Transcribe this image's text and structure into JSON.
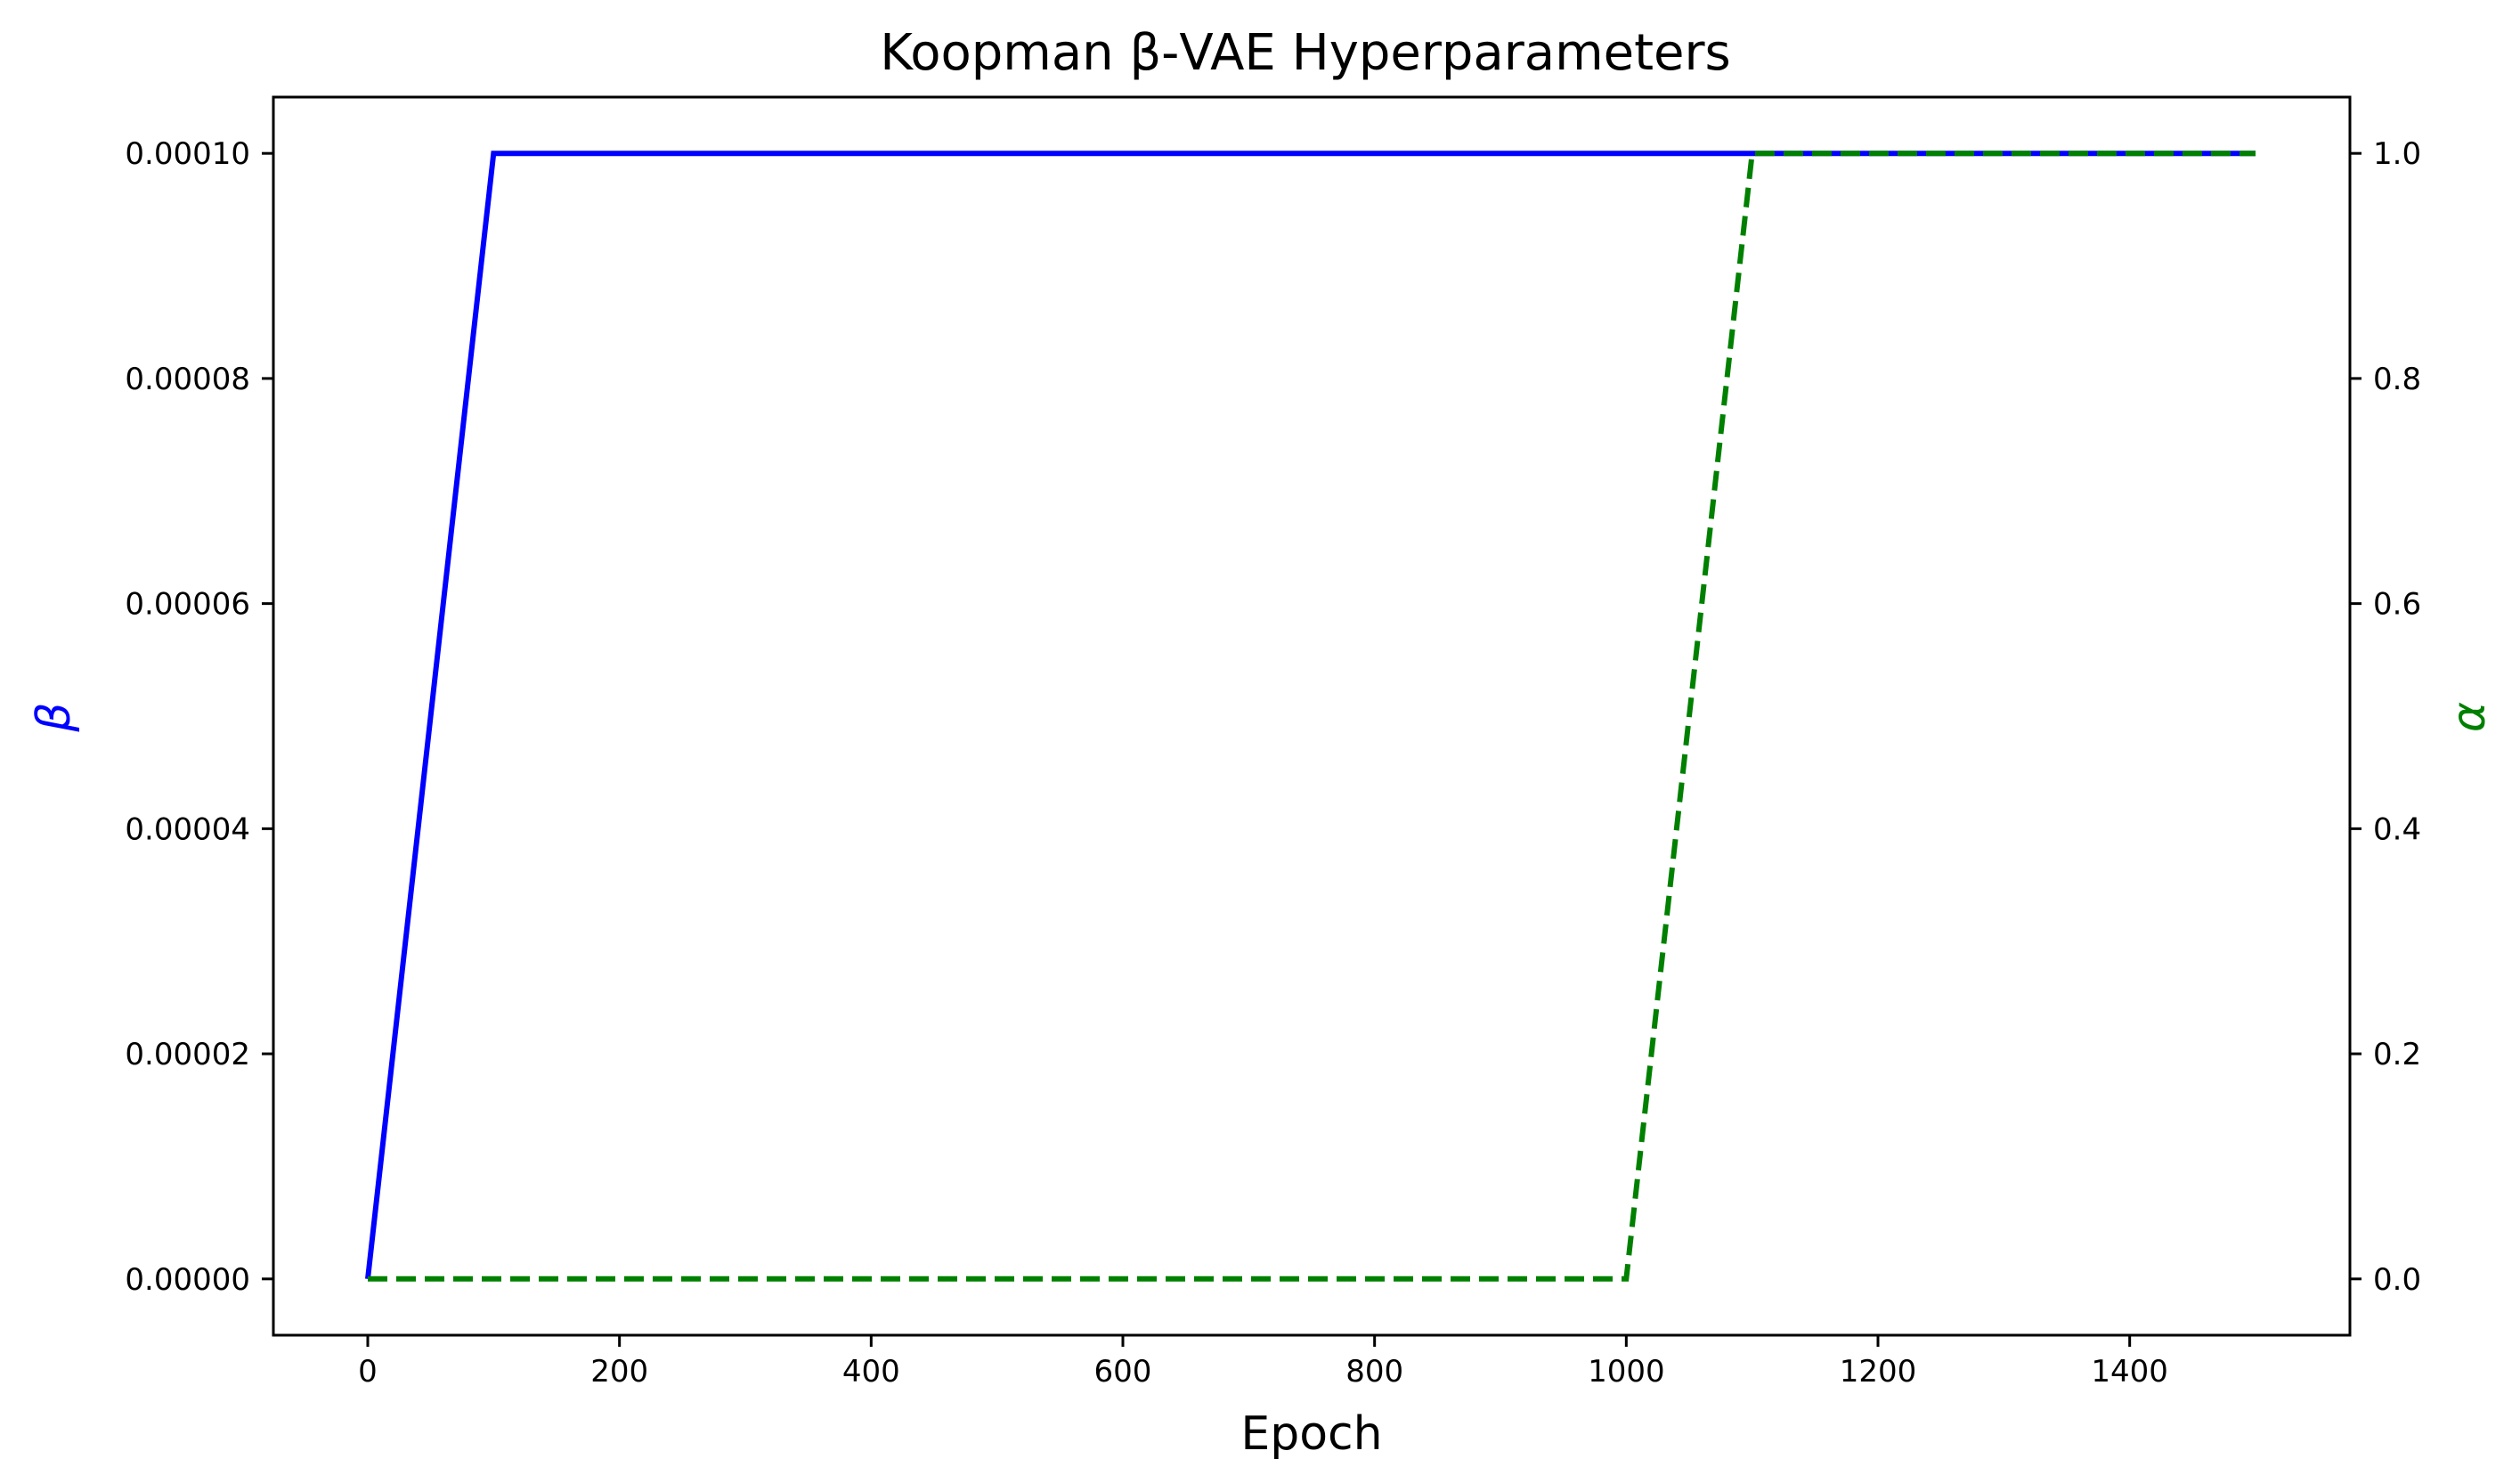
{
  "chart_data": {
    "type": "line",
    "title": "Koopman β-VAE Hyperparameters",
    "xlabel": "Epoch",
    "xlim": [
      -75,
      1575
    ],
    "x_ticks": [
      0,
      200,
      400,
      600,
      800,
      1000,
      1200,
      1400
    ],
    "x_tick_labels": [
      "0",
      "200",
      "400",
      "600",
      "800",
      "1000",
      "1200",
      "1400"
    ],
    "left_axis": {
      "ylabel": "β",
      "color": "#0000ff",
      "ylim": [
        -5e-06,
        0.000105
      ],
      "ticks": [
        0,
        2e-05,
        4e-05,
        6e-05,
        8e-05,
        0.0001
      ],
      "tick_labels": [
        "0.00000",
        "0.00002",
        "0.00004",
        "0.00006",
        "0.00008",
        "0.00010"
      ]
    },
    "right_axis": {
      "ylabel": "α",
      "color": "#008000",
      "ylim": [
        -0.05,
        1.05
      ],
      "ticks": [
        0,
        0.2,
        0.4,
        0.6,
        0.8,
        1.0
      ],
      "tick_labels": [
        "0.0",
        "0.2",
        "0.4",
        "0.6",
        "0.8",
        "1.0"
      ]
    },
    "series": [
      {
        "axis": "left",
        "color": "#0000ff",
        "style": "solid",
        "x": [
          0,
          100,
          1500
        ],
        "y": [
          0,
          0.0001,
          0.0001
        ]
      },
      {
        "axis": "right",
        "color": "#008000",
        "style": "dashed",
        "x": [
          0,
          1000,
          1100,
          1500
        ],
        "y": [
          0,
          0,
          1.0,
          1.0
        ]
      }
    ],
    "grid": false,
    "legend": "none"
  }
}
